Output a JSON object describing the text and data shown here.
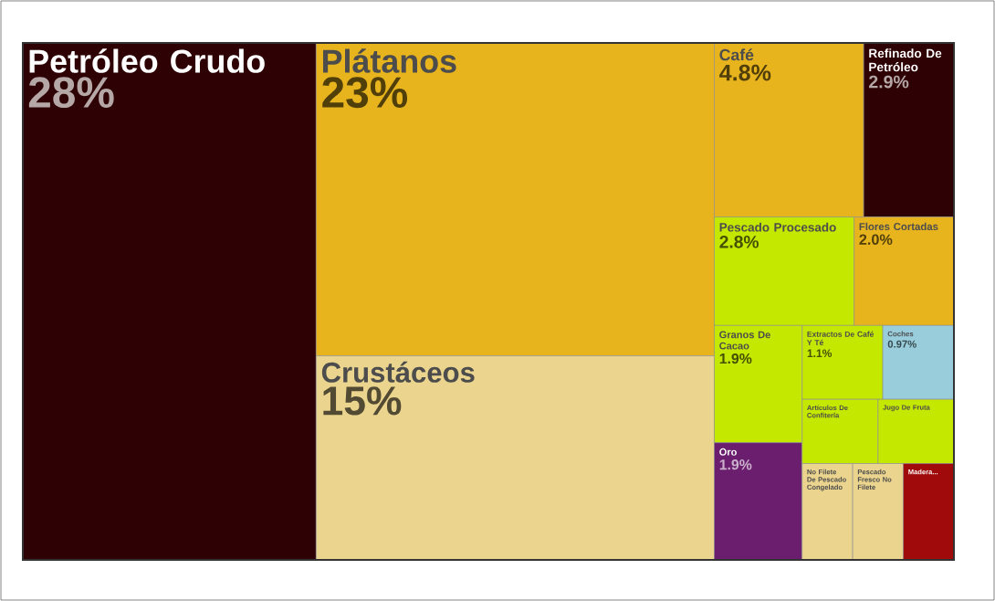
{
  "chart_data": {
    "type": "other",
    "categories": [
      "Petróleo Crudo",
      "Plátanos",
      "Crustáceos",
      "Café",
      "Refinado De Petróleo",
      "Pescado Procesado",
      "Flores Cortadas",
      "Granos De Cacao",
      "Oro",
      "Extractos De Café Y Té",
      "Coches",
      "Artículos De Confitería",
      "Jugo De Fruta",
      "No Filete De Pescado Congelado",
      "Pescado Fresco No Filete",
      "Madera..."
    ],
    "values": [
      28,
      23,
      15,
      4.8,
      2.9,
      2.8,
      2.0,
      1.9,
      1.9,
      1.1,
      0.97,
      null,
      null,
      null,
      null,
      null
    ],
    "value_labels": [
      "28%",
      "23%",
      "15%",
      "4.8%",
      "2.9%",
      "2.8%",
      "2.0%",
      "1.9%",
      "1.9%",
      "1.1%",
      "0.97%",
      null,
      null,
      null,
      null,
      null
    ],
    "colors": [
      "#2e0204",
      "#e8b41e",
      "#ead48e",
      "#e8b41e",
      "#2e0204",
      "#c4e800",
      "#e8b41e",
      "#c4e800",
      "#6b1e6e",
      "#c4e800",
      "#99cddb",
      "#c4e800",
      "#c4e800",
      "#ead48e",
      "#ead48e",
      "#a00a0a"
    ]
  }
}
